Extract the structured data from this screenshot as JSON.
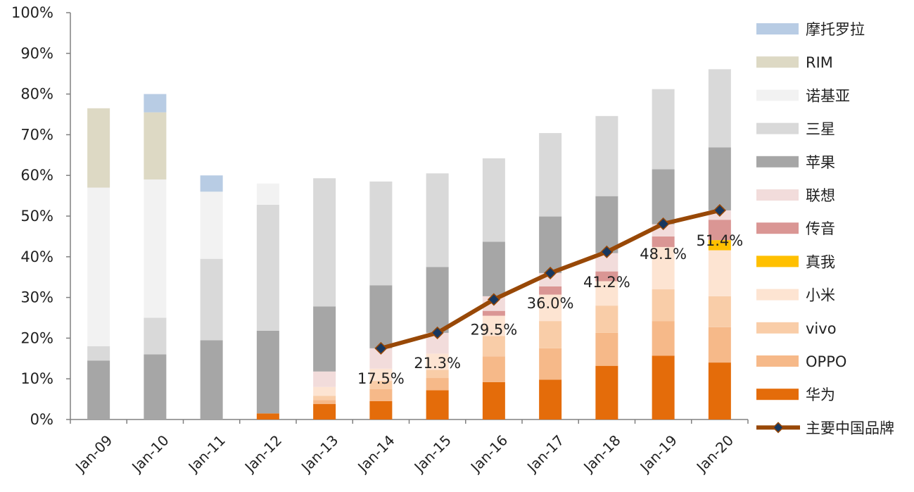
{
  "chart_data": {
    "type": "bar",
    "stacked": true,
    "ylim": [
      0,
      100
    ],
    "yticks": [
      "0%",
      "10%",
      "20%",
      "30%",
      "40%",
      "50%",
      "60%",
      "70%",
      "80%",
      "90%",
      "100%"
    ],
    "categories": [
      "Jan-09",
      "Jan-10",
      "Jan-11",
      "Jan-12",
      "Jan-13",
      "Jan-14",
      "Jan-15",
      "Jan-16",
      "Jan-17",
      "Jan-18",
      "Jan-19",
      "Jan-20"
    ],
    "series": [
      {
        "name": "华为",
        "color": "#E46C0A",
        "values": [
          0,
          0,
          0,
          1.5,
          3.8,
          4.5,
          7.2,
          9.2,
          9.8,
          13.2,
          15.7,
          14.0
        ]
      },
      {
        "name": "OPPO",
        "color": "#F6B989",
        "values": [
          0,
          0,
          0,
          0,
          1.0,
          3.0,
          3.0,
          6.3,
          7.7,
          8.1,
          8.5,
          8.7
        ]
      },
      {
        "name": "vivo",
        "color": "#F9CDA8",
        "values": [
          0,
          0,
          0,
          0,
          1.0,
          2.0,
          2.0,
          5.0,
          6.7,
          6.7,
          7.8,
          7.6
        ]
      },
      {
        "name": "小米",
        "color": "#FDE4D2",
        "values": [
          0,
          0,
          0,
          0,
          2.2,
          3.0,
          4.0,
          5.0,
          6.5,
          6.0,
          10.4,
          11.3
        ]
      },
      {
        "name": "真我",
        "color": "#FFC000",
        "values": [
          0,
          0,
          0,
          0,
          0,
          0,
          0,
          0,
          0,
          0,
          0,
          2.5
        ]
      },
      {
        "name": "传音",
        "color": "#DA9694",
        "values": [
          0,
          0,
          0,
          0,
          0,
          0,
          0,
          1.2,
          2.0,
          2.4,
          2.6,
          5.0
        ]
      },
      {
        "name": "联想",
        "color": "#F2DCDB",
        "values": [
          0,
          0,
          0,
          0,
          3.8,
          5.0,
          5.1,
          3.6,
          3.3,
          4.5,
          3.0,
          2.3
        ]
      },
      {
        "name": "苹果",
        "color": "#A6A6A6",
        "values": [
          14.5,
          16.0,
          19.5,
          20.3,
          16.0,
          15.5,
          16.2,
          13.4,
          13.9,
          14.0,
          13.5,
          15.5
        ]
      },
      {
        "name": "三星",
        "color": "#D9D9D9",
        "values": [
          3.5,
          9.0,
          20.0,
          31.0,
          31.5,
          25.5,
          23.0,
          20.5,
          20.5,
          19.7,
          19.7,
          19.2
        ]
      },
      {
        "name": "诺基亚",
        "color": "#F2F2F2",
        "values": [
          39.0,
          34.0,
          16.5,
          5.2,
          0,
          0,
          0,
          0,
          0,
          0,
          0,
          0
        ]
      },
      {
        "name": "RIM",
        "color": "#DDD9C4",
        "values": [
          19.5,
          16.5,
          0,
          0,
          0,
          0,
          0,
          0,
          0,
          0,
          0,
          0
        ]
      },
      {
        "name": "摩托罗拉",
        "color": "#B8CCE4",
        "values": [
          0,
          4.5,
          4.0,
          0,
          0,
          0,
          0,
          0,
          0,
          0,
          0,
          0
        ]
      }
    ],
    "line": {
      "name": "主要中国品牌",
      "color": "#984807",
      "marker_color": "#17375E",
      "start_index": 5,
      "values": [
        17.5,
        21.3,
        29.5,
        36.0,
        41.2,
        48.1,
        51.4
      ],
      "labels": [
        "17.5%",
        "21.3%",
        "29.5%",
        "36.0%",
        "41.2%",
        "48.1%",
        "51.4%"
      ]
    },
    "legend": [
      "摩托罗拉",
      "RIM",
      "诺基亚",
      "三星",
      "苹果",
      "联想",
      "传音",
      "真我",
      "小米",
      "vivo",
      "OPPO",
      "华为",
      "主要中国品牌"
    ],
    "legend_position": "right"
  }
}
